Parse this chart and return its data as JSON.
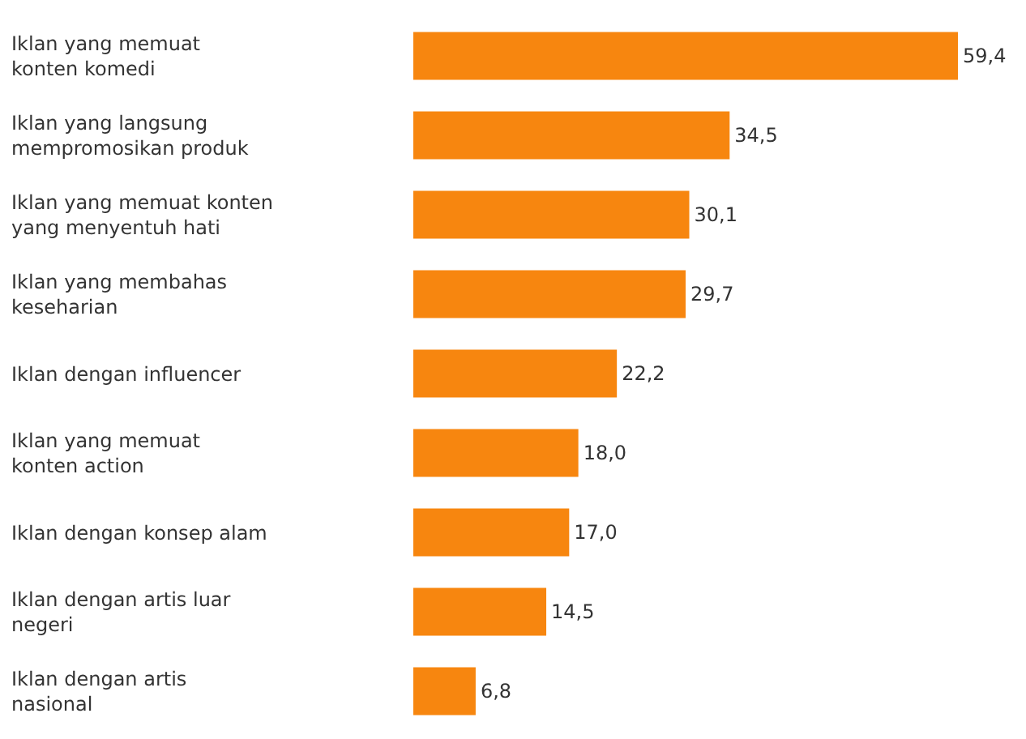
{
  "chart_data": {
    "type": "bar",
    "orientation": "horizontal",
    "categories": [
      "Iklan yang memuat\nkonten komedi",
      "Iklan yang langsung\nmempromosikan produk",
      "Iklan yang memuat konten\nyang menyentuh hati",
      "Iklan yang membahas\nkeseharian",
      "Iklan dengan influencer",
      "Iklan yang memuat\nkonten action",
      "Iklan dengan konsep alam",
      "Iklan dengan artis luar\nnegeri",
      "Iklan dengan artis\nnasional"
    ],
    "values": [
      59.4,
      34.5,
      30.1,
      29.7,
      22.2,
      18.0,
      17.0,
      14.5,
      6.8
    ],
    "value_labels": [
      "59,4",
      "34,5",
      "30,1",
      "29,7",
      "22,2",
      "18,0",
      "17,0",
      "14,5",
      "6,8"
    ],
    "color": "#f7860f"
  }
}
